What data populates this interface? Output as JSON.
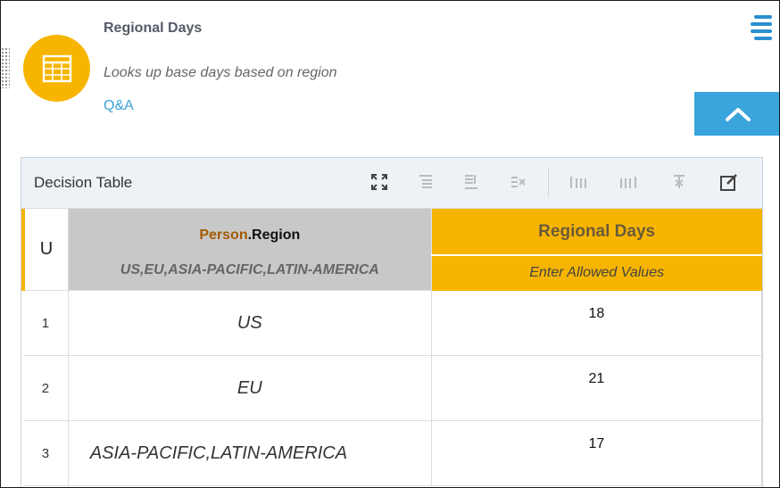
{
  "node": {
    "title": "Regional Days",
    "description": "Looks up base days based on region",
    "qa_link": "Q&A",
    "icon": "table-icon",
    "accent_color": "#f7b500"
  },
  "header_controls": {
    "menu_icon": "hamburger-menu-icon",
    "collapse_icon": "chevron-up-icon",
    "link_color": "#3aa4dc"
  },
  "decision_table": {
    "toolbar_label": "Decision Table",
    "tools": [
      {
        "name": "expand-icon",
        "enabled": true
      },
      {
        "name": "insert-rule-above-icon",
        "enabled": false
      },
      {
        "name": "insert-rule-below-icon",
        "enabled": false
      },
      {
        "name": "delete-rule-icon",
        "enabled": false
      },
      {
        "name": "insert-column-left-icon",
        "enabled": false
      },
      {
        "name": "insert-column-right-icon",
        "enabled": false
      },
      {
        "name": "delete-column-icon",
        "enabled": false
      },
      {
        "name": "edit-icon",
        "enabled": true
      }
    ],
    "hit_policy": "U",
    "input": {
      "object": "Person",
      "separator": ".",
      "attribute": "Region",
      "allowed_values": "US,EU,ASIA-PACIFIC,LATIN-AMERICA"
    },
    "output": {
      "name": "Regional Days",
      "allowed_values": "Enter Allowed Values"
    },
    "rows": [
      {
        "num": "1",
        "input": "US",
        "output": "18"
      },
      {
        "num": "2",
        "input": "EU",
        "output": "21"
      },
      {
        "num": "3",
        "input": "ASIA-PACIFIC,LATIN-AMERICA",
        "output": "17"
      }
    ]
  }
}
